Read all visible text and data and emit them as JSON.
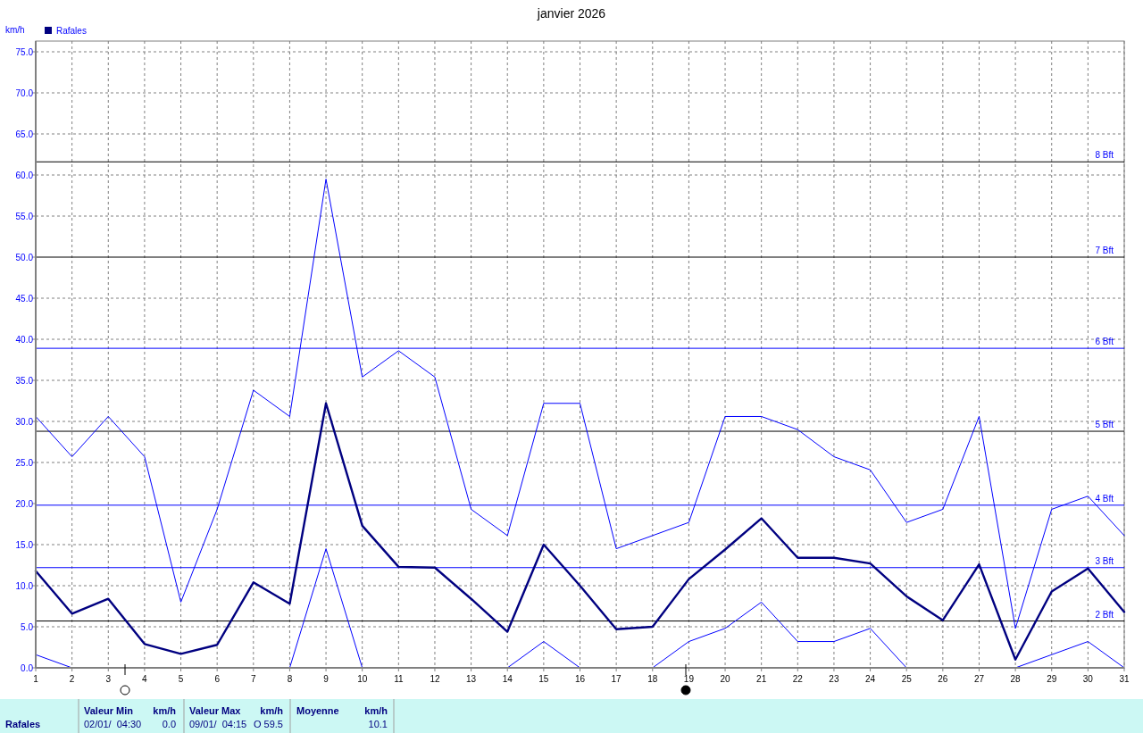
{
  "chart_data": {
    "type": "line",
    "title": "janvier 2026",
    "ylabel": "km/h",
    "x": [
      1,
      2,
      3,
      4,
      5,
      6,
      7,
      8,
      9,
      10,
      11,
      12,
      13,
      14,
      15,
      16,
      17,
      18,
      19,
      20,
      21,
      22,
      23,
      24,
      25,
      26,
      27,
      28,
      29,
      30,
      31
    ],
    "xlim": [
      1,
      31
    ],
    "xticks": [
      1,
      2,
      3,
      4,
      5,
      6,
      7,
      8,
      9,
      10,
      11,
      12,
      13,
      14,
      15,
      16,
      17,
      18,
      19,
      20,
      21,
      22,
      23,
      24,
      25,
      26,
      27,
      28,
      29,
      30,
      31
    ],
    "ylim": [
      0,
      75
    ],
    "yticks": [
      {
        "value": 0,
        "label": "0.0"
      },
      {
        "value": 5,
        "label": "5.0"
      },
      {
        "value": 10,
        "label": "10.0"
      },
      {
        "value": 15,
        "label": "15.0"
      },
      {
        "value": 20,
        "label": "20.0"
      },
      {
        "value": 25,
        "label": "25.0"
      },
      {
        "value": 30,
        "label": "30.0"
      },
      {
        "value": 35,
        "label": "35.0"
      },
      {
        "value": 40,
        "label": "40.0"
      },
      {
        "value": 45,
        "label": "45.0"
      },
      {
        "value": 50,
        "label": "50.0"
      },
      {
        "value": 55,
        "label": "55.0"
      },
      {
        "value": 60,
        "label": "60.0"
      },
      {
        "value": 65,
        "label": "65.0"
      },
      {
        "value": 70,
        "label": "70.0"
      },
      {
        "value": 75,
        "label": "75.0"
      }
    ],
    "grid": true,
    "legend": "top left",
    "marker": "none",
    "line_style": "solid",
    "series": [
      {
        "color": "#0000ff",
        "values": [
          30.6,
          25.7,
          30.6,
          25.7,
          8.0,
          19.3,
          33.8,
          30.6,
          59.5,
          35.4,
          38.6,
          35.4,
          19.3,
          16.1,
          32.2,
          32.2,
          14.5,
          16.1,
          17.7,
          30.6,
          30.6,
          29.0,
          25.7,
          24.1,
          17.7,
          19.3,
          30.6,
          4.8,
          19.3,
          20.9,
          16.1
        ]
      },
      {
        "name": "Rafales",
        "color": "#000080",
        "values": [
          11.8,
          6.6,
          8.4,
          2.9,
          1.7,
          2.8,
          10.4,
          7.8,
          32.2,
          17.3,
          12.3,
          12.2,
          8.4,
          4.4,
          15.0,
          10.0,
          4.7,
          5.0,
          10.8,
          14.4,
          18.2,
          13.4,
          13.4,
          12.7,
          8.7,
          5.8,
          12.6,
          1.0,
          9.3,
          12.1,
          6.8
        ]
      },
      {
        "color": "#0000ff",
        "values": [
          1.6,
          0,
          0,
          0,
          0,
          0,
          0,
          0,
          14.5,
          0,
          0,
          0,
          0,
          0,
          3.2,
          0,
          0,
          0,
          3.2,
          4.8,
          8.0,
          3.2,
          3.2,
          4.8,
          0,
          0,
          0,
          0,
          1.6,
          3.2,
          0
        ]
      }
    ],
    "ref_lines": [
      {
        "axis": "y",
        "value": 5.7,
        "label": "2 Bft",
        "color": "#000000"
      },
      {
        "axis": "y",
        "value": 12.2,
        "label": "3 Bft",
        "color": "#0000ff"
      },
      {
        "axis": "y",
        "value": 19.8,
        "label": "4 Bft",
        "color": "#0000ff"
      },
      {
        "axis": "y",
        "value": 28.8,
        "label": "5 Bft",
        "color": "#000000"
      },
      {
        "axis": "y",
        "value": 38.9,
        "label": "6 Bft",
        "color": "#0000ff"
      },
      {
        "axis": "y",
        "value": 50.0,
        "label": "7 Bft",
        "color": "#000000"
      },
      {
        "axis": "y",
        "value": 61.6,
        "label": "8 Bft",
        "color": "#000000"
      }
    ],
    "annotations": [
      "Rafales",
      "Valeur Min",
      "km/h",
      "02/01/  04:30",
      "0.0",
      "Valeur Max",
      "km/h",
      "09/01/  04:15",
      "O 59.5",
      "Moyenne",
      "km/h",
      "10.1"
    ]
  }
}
